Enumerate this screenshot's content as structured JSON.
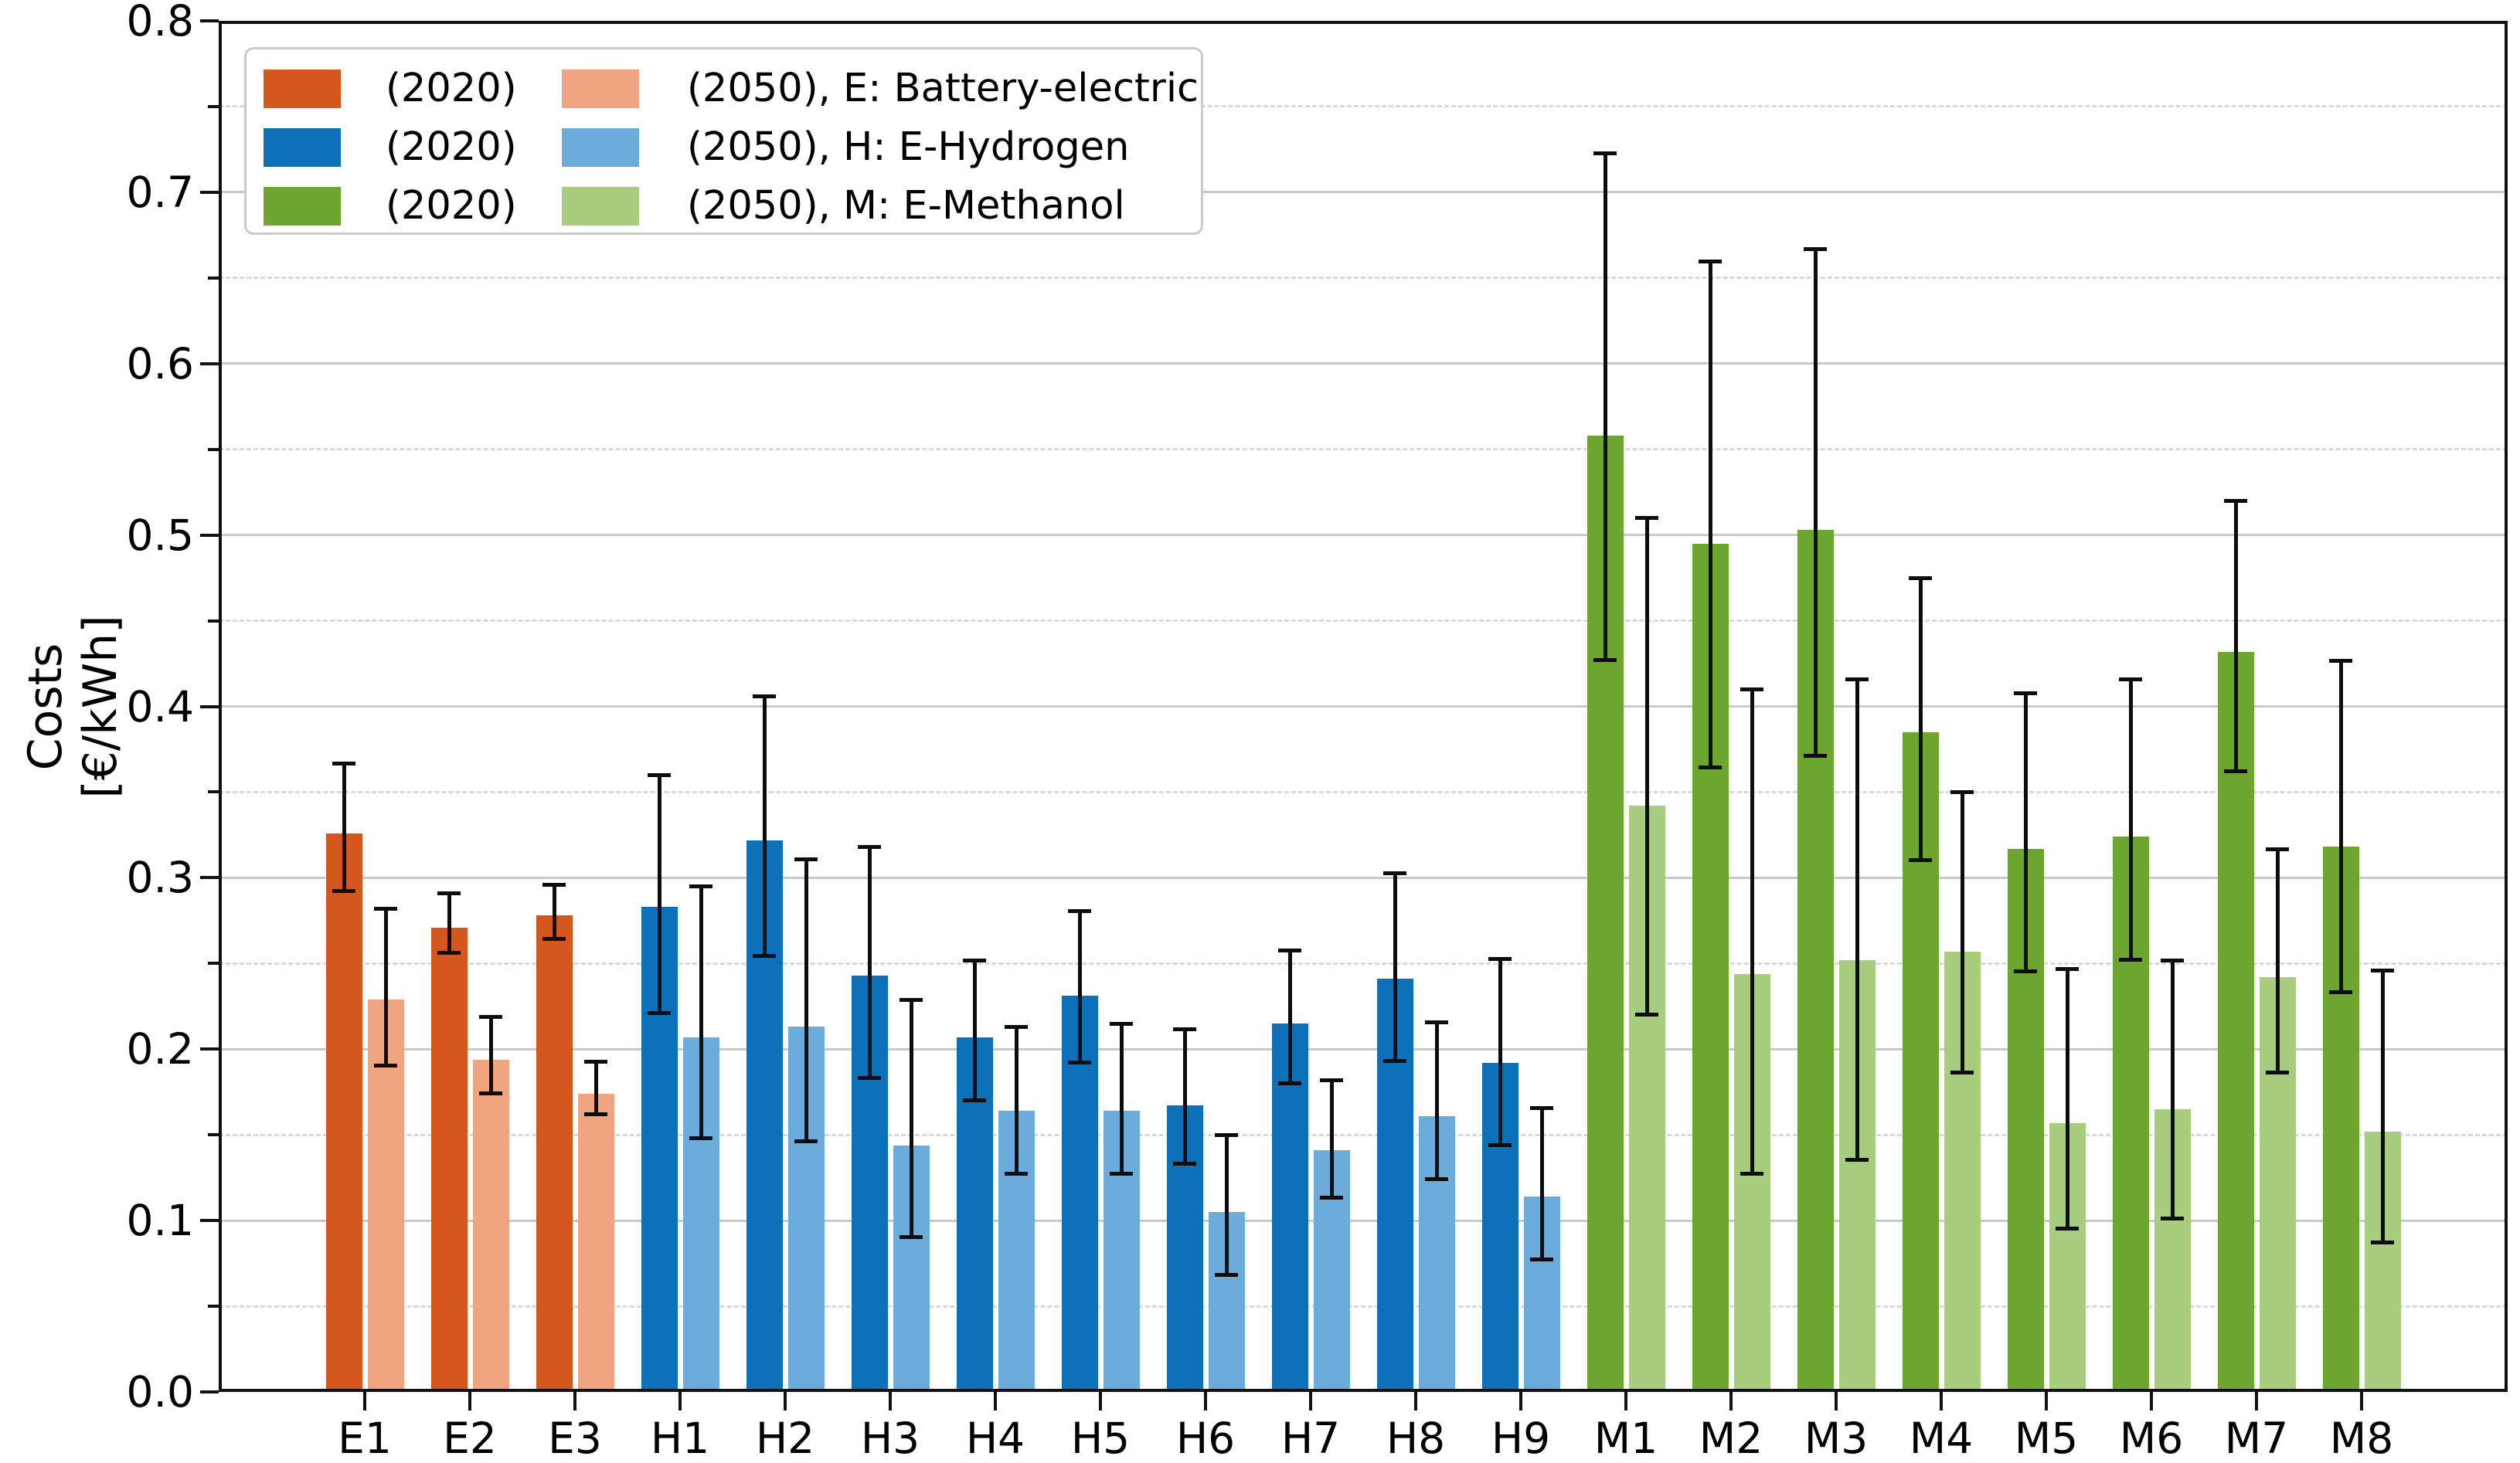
{
  "chart_data": {
    "type": "bar",
    "title": "",
    "ylabel_lines": [
      "Costs",
      "[€/kWh]"
    ],
    "xlabel": "",
    "ylim": [
      0.0,
      0.8
    ],
    "ytick_labels": [
      "0.0",
      "0.1",
      "0.2",
      "0.3",
      "0.4",
      "0.5",
      "0.6",
      "0.7",
      "0.8"
    ],
    "grid": {
      "major": "solid every 0.1",
      "minor": "dashed every 0.05"
    },
    "legend_position": "upper left",
    "legend_rows": [
      {
        "label_2020": "(2020)",
        "label_2050": "(2050), E: Battery-electric",
        "family": "E"
      },
      {
        "label_2020": "(2020)",
        "label_2050": "(2050), H: E-Hydrogen",
        "family": "H"
      },
      {
        "label_2020": "(2020)",
        "label_2050": "(2050), M: E-Methanol",
        "family": "M"
      }
    ],
    "families": {
      "E": {
        "name": "Battery-electric",
        "color_2020": "#D4571E",
        "color_2050": "#F0A480"
      },
      "H": {
        "name": "E-Hydrogen",
        "color_2020": "#0C71B8",
        "color_2050": "#6CACDB"
      },
      "M": {
        "name": "E-Methanol",
        "color_2020": "#6DA62F",
        "color_2050": "#A9CD7E"
      }
    },
    "error_bar_color": "#0d0d0d",
    "categories": [
      "E1",
      "E2",
      "E3",
      "H1",
      "H2",
      "H3",
      "H4",
      "H5",
      "H6",
      "H7",
      "H8",
      "H9",
      "M1",
      "M2",
      "M3",
      "M4",
      "M5",
      "M6",
      "M7",
      "M8"
    ],
    "series": [
      {
        "name": "(2020)",
        "values": [
          0.326,
          0.271,
          0.278,
          0.283,
          0.322,
          0.243,
          0.207,
          0.231,
          0.167,
          0.215,
          0.241,
          0.192,
          0.558,
          0.495,
          0.503,
          0.385,
          0.317,
          0.324,
          0.432,
          0.318
        ],
        "err_low": [
          0.292,
          0.256,
          0.264,
          0.221,
          0.254,
          0.183,
          0.17,
          0.192,
          0.133,
          0.18,
          0.193,
          0.144,
          0.427,
          0.364,
          0.371,
          0.31,
          0.245,
          0.252,
          0.362,
          0.233
        ],
        "err_high": [
          0.367,
          0.291,
          0.296,
          0.36,
          0.406,
          0.318,
          0.252,
          0.281,
          0.212,
          0.258,
          0.303,
          0.253,
          0.723,
          0.66,
          0.667,
          0.475,
          0.408,
          0.416,
          0.52,
          0.427
        ]
      },
      {
        "name": "(2050)",
        "values": [
          0.229,
          0.194,
          0.174,
          0.207,
          0.213,
          0.144,
          0.164,
          0.164,
          0.105,
          0.141,
          0.161,
          0.114,
          0.342,
          0.244,
          0.252,
          0.257,
          0.157,
          0.165,
          0.242,
          0.152
        ],
        "err_low": [
          0.19,
          0.174,
          0.162,
          0.148,
          0.146,
          0.09,
          0.127,
          0.127,
          0.068,
          0.113,
          0.124,
          0.077,
          0.22,
          0.127,
          0.135,
          0.186,
          0.095,
          0.101,
          0.186,
          0.087
        ],
        "err_high": [
          0.282,
          0.219,
          0.193,
          0.295,
          0.311,
          0.229,
          0.213,
          0.215,
          0.15,
          0.182,
          0.216,
          0.166,
          0.51,
          0.41,
          0.416,
          0.35,
          0.247,
          0.252,
          0.317,
          0.246
        ]
      }
    ]
  }
}
